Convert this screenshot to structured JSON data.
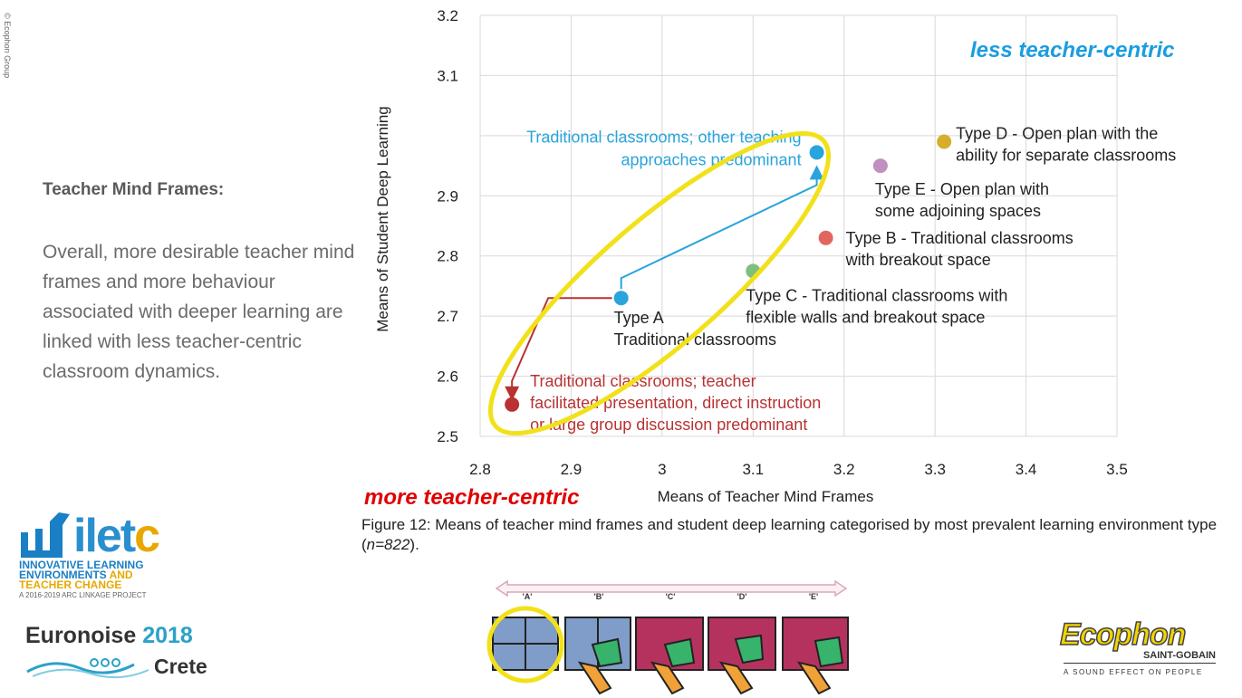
{
  "copyright": "© Ecophon Group",
  "left_panel": {
    "title": "Teacher Mind Frames:",
    "body": "Overall, more desirable teacher mind frames and more behaviour associated with deeper learning are linked with less teacher-centric classroom dynamics."
  },
  "annotations": {
    "less_centric": "less teacher-centric",
    "more_centric": "more teacher-centric"
  },
  "caption": {
    "prefix": "Figure 12: Means of teacher mind frames and student deep learning categorised by most prevalent learning environment type (",
    "n": "n=822",
    "suffix": ")."
  },
  "colors": {
    "blue": "#29a4dc",
    "red": "#b83232",
    "yellow_ring": "#f2e11a",
    "typeD": "#d7ad2c",
    "typeE": "#c18fc0",
    "typeB": "#e26660",
    "typeC": "#7ebf7e"
  },
  "chart_data": {
    "type": "scatter",
    "xlabel": "Means of Teacher Mind Frames",
    "ylabel": "Means of Student Deep Learning",
    "xlim": [
      2.8,
      3.5
    ],
    "ylim": [
      2.5,
      3.2
    ],
    "x_ticks": [
      "2.8",
      "2.9",
      "3",
      "3.1",
      "3.2",
      "3.3",
      "3.4",
      "3.5"
    ],
    "y_ticks": [
      "2.5",
      "2.6",
      "2.7",
      "2.8",
      "2.9",
      "3.1",
      "3.2"
    ],
    "grid": true,
    "points": [
      {
        "id": "typeD",
        "x": 3.31,
        "y": 2.99,
        "color": "#d7ad2c",
        "label": [
          "Type D - Open plan with the",
          "ability for separate classrooms"
        ]
      },
      {
        "id": "typeE",
        "x": 3.24,
        "y": 2.95,
        "color": "#c18fc0",
        "label": [
          "Type E - Open plan with",
          "some adjoining spaces"
        ]
      },
      {
        "id": "typeB",
        "x": 3.18,
        "y": 2.83,
        "color": "#e26660",
        "label": [
          "Type B - Traditional classrooms",
          "with breakout space"
        ]
      },
      {
        "id": "typeC",
        "x": 3.1,
        "y": 2.775,
        "color": "#7ebf7e",
        "label": [
          "Type C - Traditional classrooms with",
          "flexible walls and breakout space"
        ]
      },
      {
        "id": "typeA",
        "x": 2.955,
        "y": 2.73,
        "color": "#29a4dc",
        "label": [
          "Type A",
          "Traditional classrooms"
        ]
      },
      {
        "id": "blueUp",
        "x": 3.17,
        "y": 2.93,
        "color": "#29a4dc",
        "label": [
          "Traditional classrooms; other teaching",
          "approaches predominant"
        ]
      },
      {
        "id": "redDown",
        "x": 2.835,
        "y": 2.553,
        "color": "#b83232",
        "label": [
          "Traditional classrooms; teacher",
          "facilitated presentation, direct instruction",
          "or large group discussion predominant"
        ]
      }
    ]
  },
  "floor_plans": {
    "labels": [
      "'A'",
      "'B'",
      "'C'",
      "'D'",
      "'E'"
    ]
  },
  "logos": {
    "iletc": {
      "word": "ilet",
      "word_c": "c",
      "line1": "INNOVATIVE LEARNING",
      "line2": "ENVIRONMENTS",
      "line2b": "AND",
      "line3": "TEACHER CHANGE",
      "line4": "A 2016-2019 ARC LINKAGE PROJECT"
    },
    "euronoise": {
      "name": "Euronoise",
      "year": "2018",
      "place": "Crete"
    },
    "ecophon": {
      "brand": "Ecophon",
      "sub": "SAINT-GOBAIN",
      "tagline": "A SOUND EFFECT ON PEOPLE"
    }
  }
}
